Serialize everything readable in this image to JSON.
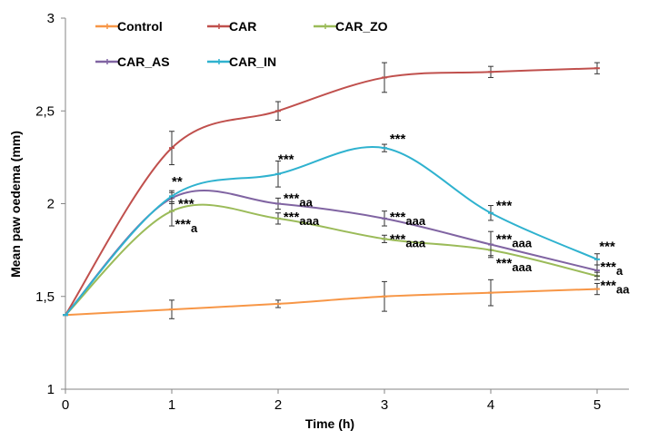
{
  "chart_data": {
    "type": "line",
    "xlabel": "Time (h)",
    "ylabel": "Mean paw oedema (mm)",
    "x": [
      0,
      1,
      2,
      3,
      4,
      5
    ],
    "x_tick_labels": [
      "0",
      "1",
      "2",
      "3",
      "4",
      "5"
    ],
    "ylim": [
      1,
      3
    ],
    "y_ticks": [
      1,
      1.5,
      2,
      2.5,
      3
    ],
    "y_tick_labels": [
      "1",
      "1,5",
      "2",
      "2,5",
      "3"
    ],
    "grid": false,
    "smooth": true,
    "series": [
      {
        "name": "Control",
        "color": "#F79646",
        "values": [
          1.4,
          1.43,
          1.46,
          1.5,
          1.52,
          1.54
        ],
        "errors": [
          0,
          0.05,
          0.02,
          0.08,
          0.07,
          0.03
        ]
      },
      {
        "name": "CAR",
        "color": "#C0504D",
        "values": [
          1.4,
          2.3,
          2.5,
          2.68,
          2.71,
          2.73
        ],
        "errors": [
          0,
          0.09,
          0.05,
          0.08,
          0.03,
          0.03
        ]
      },
      {
        "name": "CAR_ZO",
        "color": "#9BBB59",
        "values": [
          1.4,
          1.96,
          1.92,
          1.81,
          1.75,
          1.61
        ],
        "errors": [
          0,
          0.08,
          0.03,
          0.02,
          0.03,
          0.02
        ]
      },
      {
        "name": "CAR_AS",
        "color": "#8064A2",
        "values": [
          1.4,
          2.03,
          2.0,
          1.92,
          1.78,
          1.64
        ],
        "errors": [
          0,
          0.03,
          0.03,
          0.04,
          0.07,
          0.03
        ]
      },
      {
        "name": "CAR_IN",
        "color": "#2FB2CF",
        "values": [
          1.4,
          2.04,
          2.16,
          2.3,
          1.95,
          1.7
        ],
        "errors": [
          0,
          0.03,
          0.07,
          0.02,
          0.04,
          0.03
        ]
      }
    ],
    "annotations": [
      {
        "x": 1,
        "y": 2.12,
        "main": "**",
        "sup": ""
      },
      {
        "x": 1.06,
        "y": 2.0,
        "main": "***",
        "sup": ""
      },
      {
        "x": 1.03,
        "y": 1.89,
        "main": "***",
        "sup": "a"
      },
      {
        "x": 2,
        "y": 2.24,
        "main": "***",
        "sup": ""
      },
      {
        "x": 2.05,
        "y": 2.03,
        "main": "***",
        "sup": "aa"
      },
      {
        "x": 2.05,
        "y": 1.93,
        "main": "***",
        "sup": "aaa"
      },
      {
        "x": 3.05,
        "y": 2.35,
        "main": "***",
        "sup": ""
      },
      {
        "x": 3.05,
        "y": 1.93,
        "main": "***",
        "sup": "aaa"
      },
      {
        "x": 3.05,
        "y": 1.81,
        "main": "***",
        "sup": "aaa"
      },
      {
        "x": 4.05,
        "y": 1.99,
        "main": "***",
        "sup": ""
      },
      {
        "x": 4.05,
        "y": 1.81,
        "main": "***",
        "sup": "aaa"
      },
      {
        "x": 4.05,
        "y": 1.68,
        "main": "***",
        "sup": "aaa"
      },
      {
        "x": 5.02,
        "y": 1.77,
        "main": "***",
        "sup": ""
      },
      {
        "x": 5.03,
        "y": 1.66,
        "main": "***",
        "sup": "a"
      },
      {
        "x": 5.03,
        "y": 1.56,
        "main": "***",
        "sup": "aa"
      }
    ]
  }
}
